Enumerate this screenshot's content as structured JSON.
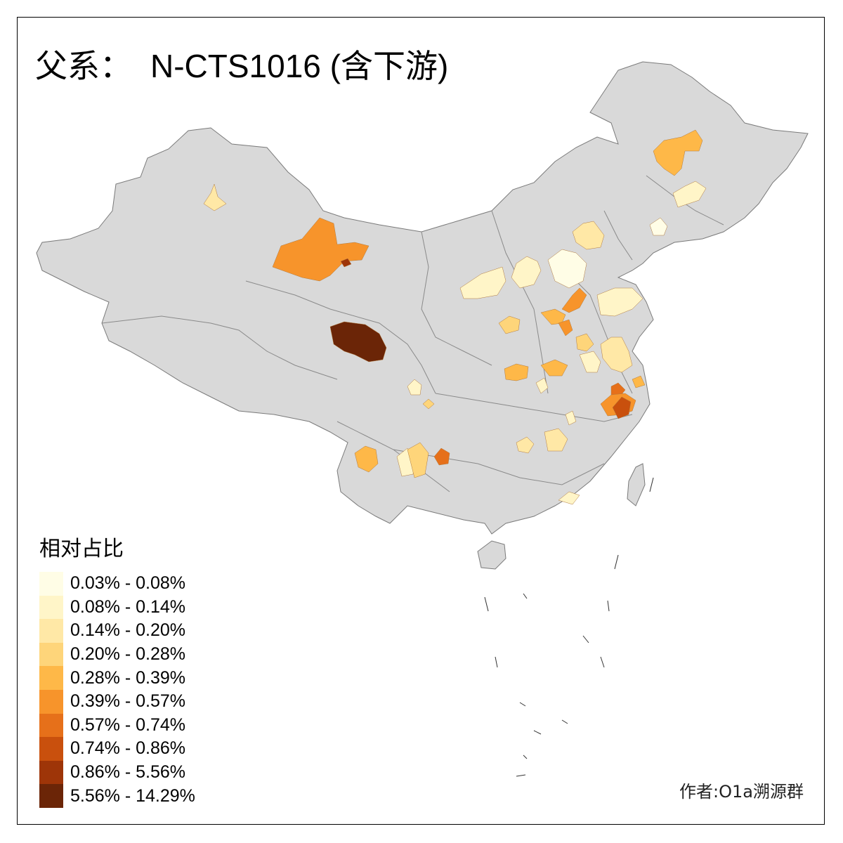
{
  "title": {
    "prefix": "父系：",
    "label": "N-CTS1016 (含下游)"
  },
  "legend": {
    "title": "相对占比",
    "classes": [
      {
        "label": "0.03% - 0.08%",
        "color": "#fffde6"
      },
      {
        "label": "0.08% - 0.14%",
        "color": "#fff5c8"
      },
      {
        "label": "0.14% - 0.20%",
        "color": "#ffe8a6"
      },
      {
        "label": "0.20% - 0.28%",
        "color": "#fed57a"
      },
      {
        "label": "0.28% - 0.39%",
        "color": "#feb848"
      },
      {
        "label": "0.39% - 0.57%",
        "color": "#f7942b"
      },
      {
        "label": "0.57% - 0.74%",
        "color": "#e6701a"
      },
      {
        "label": "0.74% - 0.86%",
        "color": "#c9500d"
      },
      {
        "label": "0.86% - 5.56%",
        "color": "#9e3508"
      },
      {
        "label": "5.56% - 14.29%",
        "color": "#6b2507"
      }
    ]
  },
  "author": "作者:O1a溯源群",
  "colors": {
    "land": "#d9d9d9",
    "border": "#7a7a7a",
    "frame": "#000000"
  }
}
